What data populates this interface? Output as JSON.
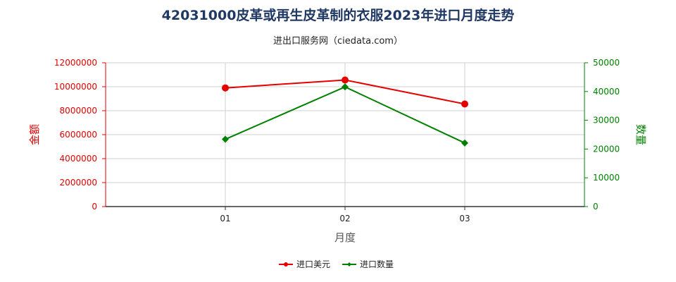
{
  "chart_data": {
    "type": "line",
    "title": "42031000皮革或再生皮革制的衣服2023年进口月度走势",
    "subtitle": "进出口服务网（ciedata.com）",
    "xlabel": "月度",
    "categories": [
      "01",
      "02",
      "03"
    ],
    "y_left": {
      "label": "金额",
      "range": [
        0,
        12000000
      ],
      "ticks": [
        "0",
        "2000000",
        "4000000",
        "6000000",
        "8000000",
        "10000000",
        "12000000"
      ],
      "color": "#e60000"
    },
    "y_right": {
      "label": "数量",
      "range": [
        0,
        50000
      ],
      "ticks": [
        "0",
        "10000",
        "20000",
        "30000",
        "40000",
        "50000"
      ],
      "color": "#008000"
    },
    "series": [
      {
        "name": "进口美元",
        "axis": "left",
        "color": "#e60000",
        "marker": "circle",
        "values": [
          9900000,
          10560000,
          8560000
        ]
      },
      {
        "name": "进口数量",
        "axis": "right",
        "color": "#008000",
        "marker": "diamond",
        "values": [
          23400,
          41600,
          22100
        ]
      }
    ],
    "grid": true,
    "legend": "bottom-center"
  }
}
